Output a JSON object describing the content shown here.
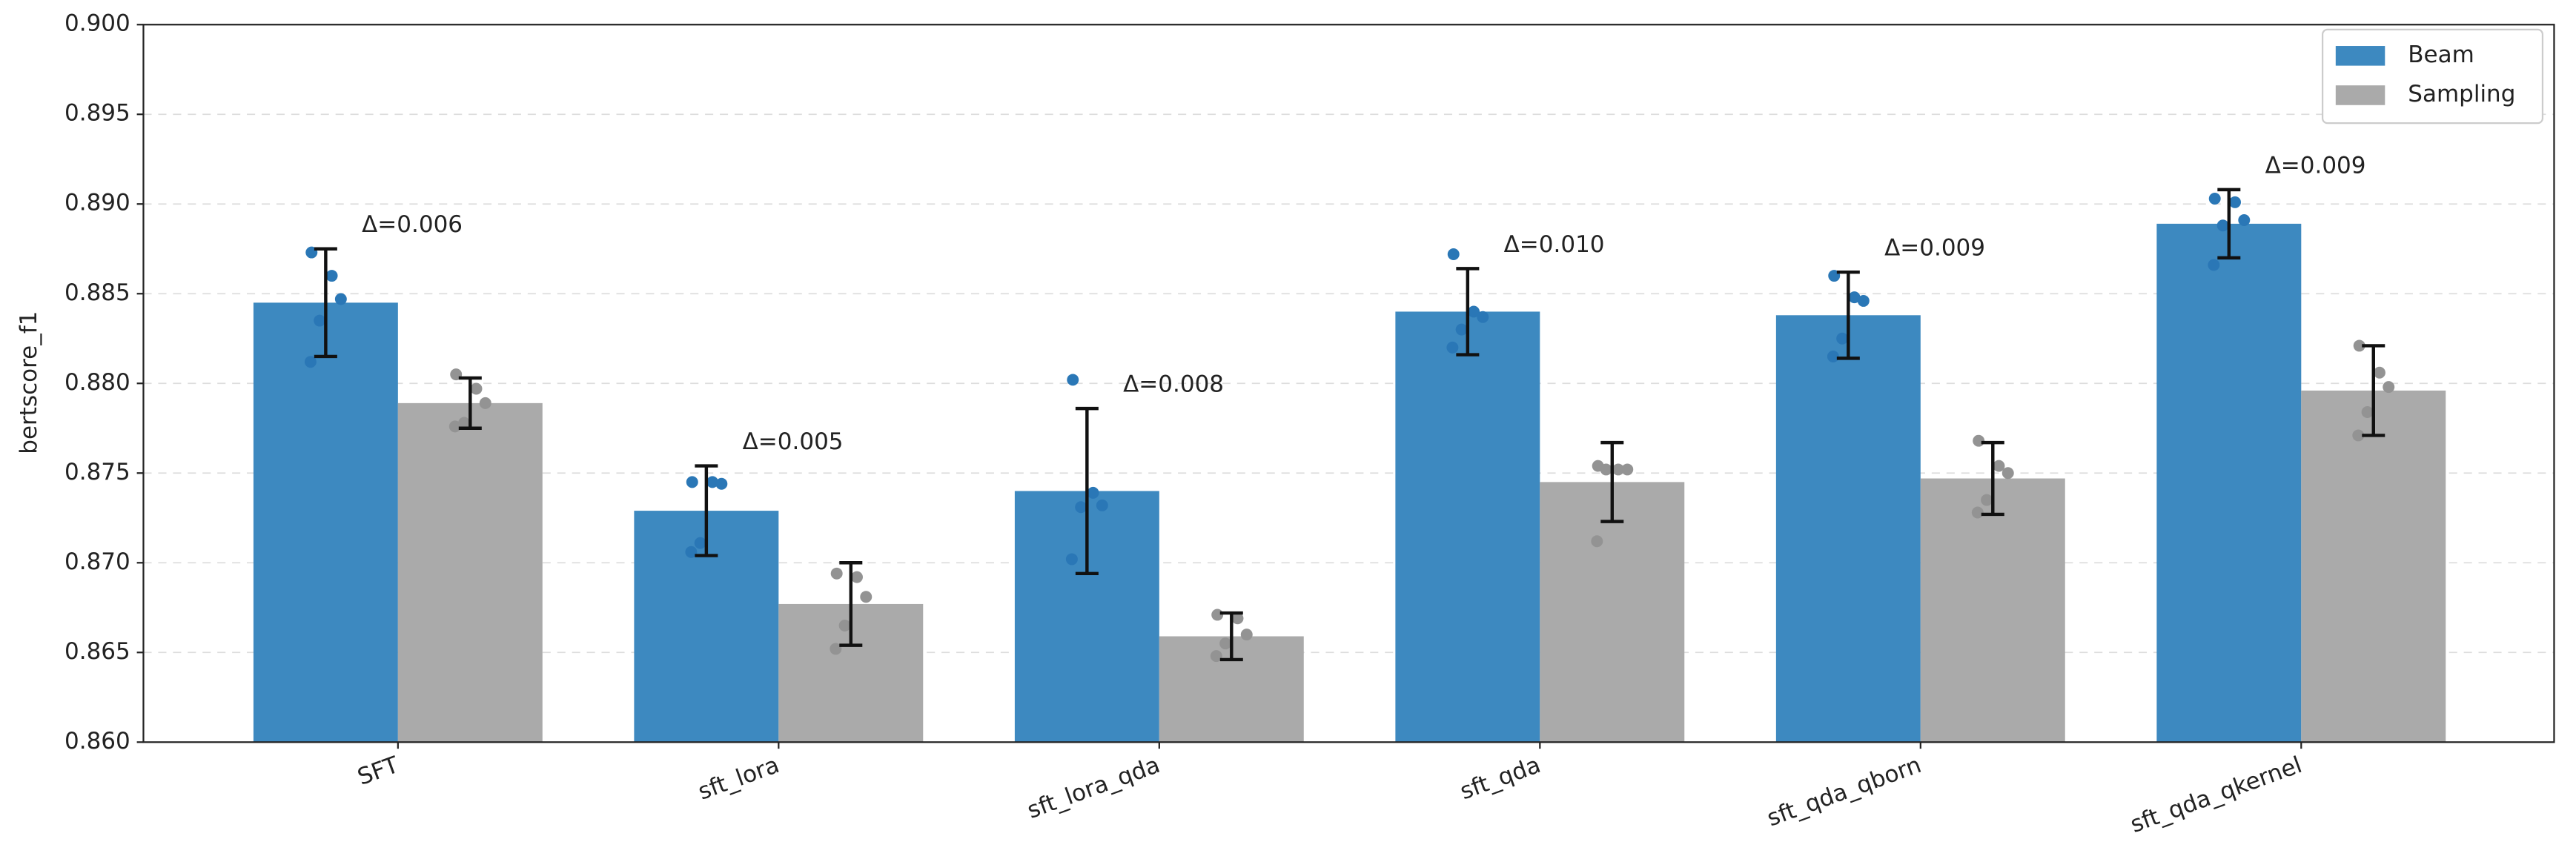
{
  "chart_data": {
    "type": "bar",
    "y_label": "bertscore_f1",
    "categories": [
      "SFT",
      "sft_lora",
      "sft_lora_qda",
      "sft_qda",
      "sft_qda_qborn",
      "sft_qda_qkernel"
    ],
    "series": [
      {
        "name": "Beam",
        "color": "#3d89c0",
        "point_color": "#2a77b6",
        "values": [
          0.8845,
          0.8729,
          0.874,
          0.884,
          0.8838,
          0.8889
        ],
        "errors": [
          0.003,
          0.0025,
          0.0046,
          0.0024,
          0.0024,
          0.0019
        ],
        "points": [
          [
            0.8873,
            0.886,
            0.8847,
            0.8835,
            0.8812
          ],
          [
            0.8745,
            0.8745,
            0.8744,
            0.8711,
            0.8706
          ],
          [
            0.8802,
            0.8739,
            0.8732,
            0.8731,
            0.8702
          ],
          [
            0.8872,
            0.884,
            0.8837,
            0.883,
            0.882
          ],
          [
            0.886,
            0.8848,
            0.8846,
            0.8825,
            0.8815
          ],
          [
            0.8903,
            0.8901,
            0.8891,
            0.8888,
            0.8866
          ]
        ]
      },
      {
        "name": "Sampling",
        "color": "#aaaaaa",
        "point_color": "#939393",
        "values": [
          0.8789,
          0.8677,
          0.8659,
          0.8745,
          0.8747,
          0.8796
        ],
        "errors": [
          0.0014,
          0.0023,
          0.0013,
          0.0022,
          0.002,
          0.0025
        ],
        "points": [
          [
            0.8805,
            0.8797,
            0.8789,
            0.8778,
            0.8776
          ],
          [
            0.8694,
            0.8692,
            0.8681,
            0.8665,
            0.8652
          ],
          [
            0.8671,
            0.8669,
            0.866,
            0.8655,
            0.8648
          ],
          [
            0.8754,
            0.8752,
            0.8752,
            0.8752,
            0.8712
          ],
          [
            0.8768,
            0.8754,
            0.875,
            0.8735,
            0.8728
          ],
          [
            0.8821,
            0.8806,
            0.8798,
            0.8784,
            0.8771
          ]
        ]
      }
    ],
    "annotations": [
      "Δ=0.006",
      "Δ=0.005",
      "Δ=0.008",
      "Δ=0.010",
      "Δ=0.009",
      "Δ=0.009"
    ],
    "ylim": [
      0.86,
      0.9
    ],
    "yticks": [
      {
        "value": 0.86,
        "label": "0.860"
      },
      0.865,
      {
        "value": 0.87,
        "label": "0.870"
      },
      0.875,
      {
        "value": 0.88,
        "label": "0.880"
      },
      0.885,
      {
        "value": 0.89,
        "label": "0.890"
      },
      0.895,
      {
        "value": 0.9,
        "label": "0.900"
      }
    ],
    "grid": true,
    "legend": "upper right"
  }
}
